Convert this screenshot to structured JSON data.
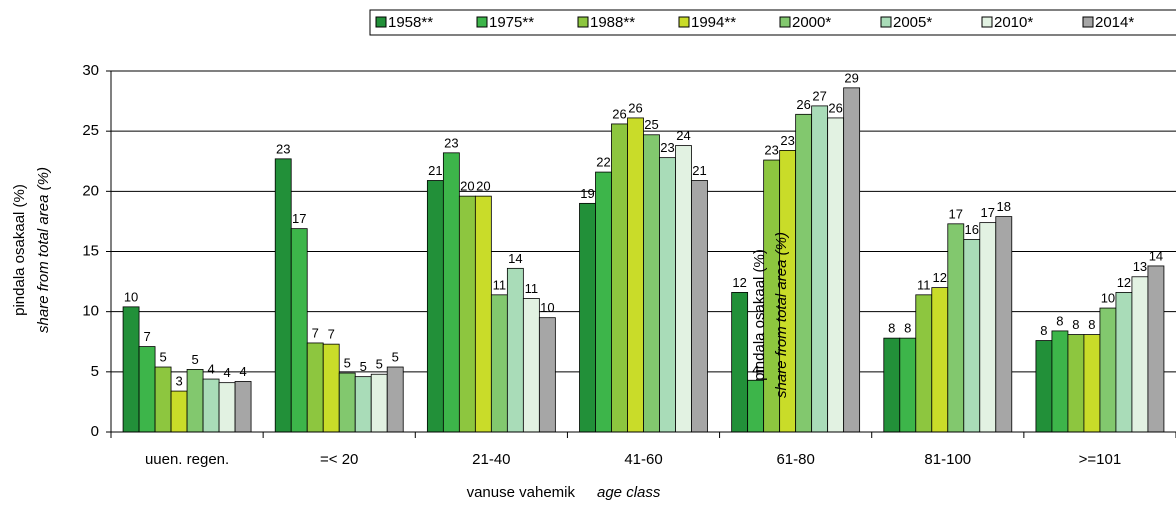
{
  "chart_data": {
    "type": "bar",
    "ylabel": [
      "pindala osakaal (%)",
      "share from total area (%)"
    ],
    "xlabel": [
      "vanuse vahemik",
      "age class"
    ],
    "annotations": [
      "pindala osakaal (%)",
      "share from total area (%)"
    ],
    "categories": [
      "uuen. regen.",
      "=< 20",
      "21-40",
      "41-60",
      "61-80",
      "81-100",
      ">=101"
    ],
    "ylim": [
      0,
      30
    ],
    "yticks": [
      0,
      5,
      10,
      15,
      20,
      25,
      30
    ],
    "grid": true,
    "legend": "top-right",
    "series": [
      {
        "name": "1958**",
        "color": "#229039",
        "values": [
          10.4,
          22.7,
          20.9,
          19.0,
          11.6,
          7.8,
          7.6
        ],
        "value_labels": [
          "10",
          "23",
          "21",
          "19",
          "12",
          "8",
          "8"
        ]
      },
      {
        "name": "1975**",
        "color": "#3db54a",
        "values": [
          7.1,
          16.9,
          23.2,
          21.6,
          4.3,
          7.8,
          8.4
        ],
        "value_labels": [
          "7",
          "17",
          "23",
          "22",
          "4",
          "8",
          "8"
        ]
      },
      {
        "name": "1988**",
        "color": "#8dc63f",
        "values": [
          5.4,
          7.4,
          19.6,
          25.6,
          22.6,
          11.4,
          8.1
        ],
        "value_labels": [
          "5",
          "7",
          "20",
          "26",
          "23",
          "11",
          "8"
        ]
      },
      {
        "name": "1994**",
        "color": "#c9dc29",
        "values": [
          3.4,
          7.3,
          19.6,
          26.1,
          23.4,
          12.0,
          8.1
        ],
        "value_labels": [
          "3",
          "7",
          "20",
          "26",
          "23",
          "12",
          "8"
        ]
      },
      {
        "name": "2000*",
        "color": "#82c86e",
        "values": [
          5.2,
          4.9,
          11.4,
          24.7,
          26.4,
          17.3,
          10.3
        ],
        "value_labels": [
          "5",
          "5",
          "11",
          "25",
          "26",
          "17",
          "10"
        ]
      },
      {
        "name": "2005*",
        "color": "#a9dcb8",
        "values": [
          4.4,
          4.6,
          13.6,
          22.8,
          27.1,
          16.0,
          11.6
        ],
        "value_labels": [
          "4",
          "5",
          "14",
          "23",
          "27",
          "16",
          "12"
        ]
      },
      {
        "name": "2010*",
        "color": "#e2f2e2",
        "values": [
          4.1,
          4.8,
          11.1,
          23.8,
          26.1,
          17.4,
          12.9
        ],
        "value_labels": [
          "4",
          "5",
          "11",
          "24",
          "26",
          "17",
          "13"
        ]
      },
      {
        "name": "2014*",
        "color": "#a6a6a6",
        "values": [
          4.2,
          5.4,
          9.5,
          20.9,
          28.6,
          17.9,
          13.8
        ],
        "value_labels": [
          "4",
          "5",
          "10",
          "21",
          "29",
          "18",
          "14"
        ]
      }
    ]
  }
}
